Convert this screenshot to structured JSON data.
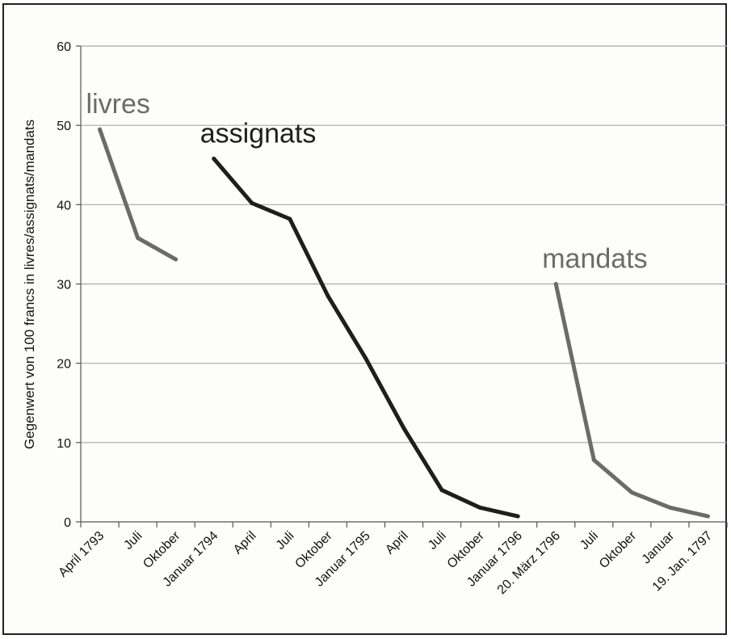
{
  "chart_data": {
    "type": "line",
    "title": "",
    "xlabel": "",
    "ylabel": "Gegenwert von 100 francs in livres/assignats/mandats",
    "ylim": [
      0,
      60
    ],
    "yticks": [
      0,
      10,
      20,
      30,
      40,
      50,
      60
    ],
    "grid": true,
    "categories": [
      "April 1793",
      "Juli",
      "Oktober",
      "Januar 1794",
      "April",
      "Juli",
      "Oktober",
      "Januar 1795",
      "April",
      "Juli",
      "Oktober",
      "Januar 1796",
      "20. März 1796",
      "Juli",
      "Oktober",
      "Januar",
      "19. Jan. 1797"
    ],
    "series": [
      {
        "name": "livres",
        "color": "#6b6b6b",
        "points": [
          {
            "x": 0.5,
            "y": 49.5
          },
          {
            "x": 1.5,
            "y": 35.8
          },
          {
            "x": 2.5,
            "y": 33.1
          }
        ]
      },
      {
        "name": "assignats",
        "color": "#1e1e1e",
        "points": [
          {
            "x": 3.5,
            "y": 45.8
          },
          {
            "x": 4.5,
            "y": 40.2
          },
          {
            "x": 5.5,
            "y": 38.2
          },
          {
            "x": 6.5,
            "y": 28.5
          },
          {
            "x": 7.5,
            "y": 20.6
          },
          {
            "x": 8.5,
            "y": 11.8
          },
          {
            "x": 9.5,
            "y": 4.0
          },
          {
            "x": 10.5,
            "y": 1.8
          },
          {
            "x": 11.5,
            "y": 0.7
          }
        ]
      },
      {
        "name": "mandats",
        "color": "#6b6b6b",
        "points": [
          {
            "x": 12.5,
            "y": 30.0
          },
          {
            "x": 13.5,
            "y": 7.8
          },
          {
            "x": 14.5,
            "y": 3.7
          },
          {
            "x": 15.5,
            "y": 1.8
          },
          {
            "x": 16.5,
            "y": 0.7
          }
        ]
      }
    ]
  }
}
